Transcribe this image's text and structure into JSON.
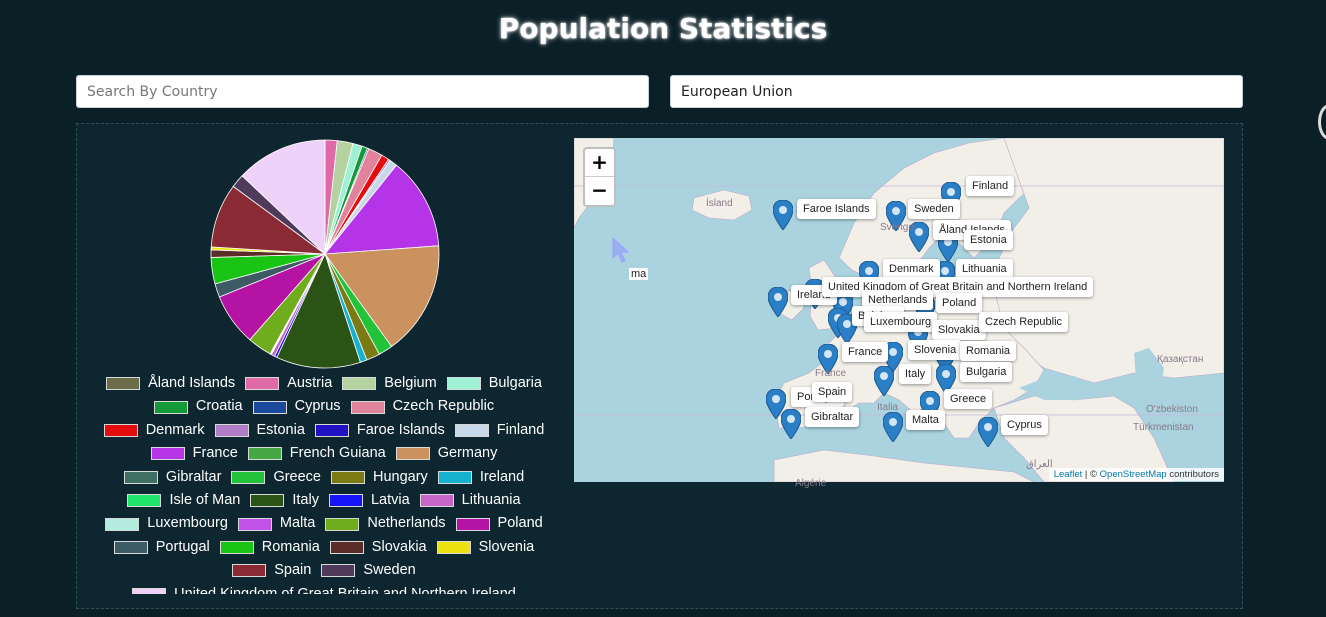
{
  "title": "Population Statistics",
  "search": {
    "placeholder": "Search By Country"
  },
  "region": {
    "value": "European Union"
  },
  "legend": [
    {
      "label": "Åland Islands",
      "color": "#6b6d4a"
    },
    {
      "label": "Austria",
      "color": "#e06aa8"
    },
    {
      "label": "Belgium",
      "color": "#b4d3a1"
    },
    {
      "label": "Bulgaria",
      "color": "#9ff1d5"
    },
    {
      "label": "Croatia",
      "color": "#159a3a"
    },
    {
      "label": "Cyprus",
      "color": "#1b4a9c"
    },
    {
      "label": "Czech Republic",
      "color": "#e2839e"
    },
    {
      "label": "Denmark",
      "color": "#e40c0c"
    },
    {
      "label": "Estonia",
      "color": "#b07cc6"
    },
    {
      "label": "Faroe Islands",
      "color": "#2111c0"
    },
    {
      "label": "Finland",
      "color": "#c7d9e8"
    },
    {
      "label": "France",
      "color": "#b634e8"
    },
    {
      "label": "French Guiana",
      "color": "#46a843"
    },
    {
      "label": "Germany",
      "color": "#cb915e"
    },
    {
      "label": "Gibraltar",
      "color": "#3f6e62"
    },
    {
      "label": "Greece",
      "color": "#23c339"
    },
    {
      "label": "Hungary",
      "color": "#7c7a12"
    },
    {
      "label": "Ireland",
      "color": "#16b1cf"
    },
    {
      "label": "Isle of Man",
      "color": "#1ee56a"
    },
    {
      "label": "Italy",
      "color": "#2b5315"
    },
    {
      "label": "Latvia",
      "color": "#1713f7"
    },
    {
      "label": "Lithuania",
      "color": "#c865c9"
    },
    {
      "label": "Luxembourg",
      "color": "#b4ece0"
    },
    {
      "label": "Malta",
      "color": "#c153e8"
    },
    {
      "label": "Netherlands",
      "color": "#6fad1d"
    },
    {
      "label": "Poland",
      "color": "#b413a4"
    },
    {
      "label": "Portugal",
      "color": "#3d5b65"
    },
    {
      "label": "Romania",
      "color": "#1ac414"
    },
    {
      "label": "Slovakia",
      "color": "#5c2d28"
    },
    {
      "label": "Slovenia",
      "color": "#ece20f"
    },
    {
      "label": "Spain",
      "color": "#8a2a34"
    },
    {
      "label": "Sweden",
      "color": "#4f3a5c"
    },
    {
      "label": "United Kingdom of Great Britain and Northern Ireland",
      "color": "#efd2fa"
    }
  ],
  "chart_data": {
    "type": "pie",
    "categories": [
      "Austria",
      "Belgium",
      "Bulgaria",
      "Croatia",
      "Cyprus",
      "Czech Republic",
      "Denmark",
      "Estonia",
      "Finland",
      "France",
      "Germany",
      "Greece",
      "Hungary",
      "Ireland",
      "Italy",
      "Latvia",
      "Lithuania",
      "Luxembourg",
      "Malta",
      "Netherlands",
      "Poland",
      "Portugal",
      "Romania",
      "Slovakia",
      "Slovenia",
      "Spain",
      "Sweden",
      "United Kingdom of Great Britain and Northern Ireland"
    ],
    "values": [
      1.7,
      2.2,
      1.3,
      0.8,
      0.2,
      2.0,
      1.1,
      0.25,
      1.1,
      12.9,
      16.0,
      2.0,
      1.9,
      0.95,
      11.8,
      0.35,
      0.5,
      0.12,
      0.09,
      3.4,
      7.3,
      1.9,
      3.7,
      1.05,
      0.4,
      9.0,
      1.9,
      12.8
    ]
  },
  "map": {
    "labels": [
      "Faroe Islands",
      "Sweden",
      "Finland",
      "Åland Islands",
      "Estonia",
      "Denmark",
      "Lithuania",
      "Ireland",
      "United Kingdom of Great Britain and Northern Ireland",
      "Netherlands",
      "Poland",
      "Belgium",
      "Luxembourg",
      "Slovakia",
      "Czech Republic",
      "France",
      "Slovenia",
      "Romania",
      "Italy",
      "Bulgaria",
      "Portugal",
      "Spain",
      "Greece",
      "Gibraltar",
      "Malta",
      "Cyprus"
    ],
    "basemap_text": [
      "Ísland",
      "Қазақстан",
      "O'zbekiston",
      "Türkmenistan",
      "Italia",
      "France",
      "Sverige",
      "العراق",
      "Algérie"
    ],
    "cursor_text": "ma",
    "zoom_in": "+",
    "zoom_out": "−",
    "attribution_leaflet": "Leaflet",
    "attribution_sep": " | © ",
    "attribution_osm": "OpenStreetMap",
    "attribution_tail": " contributors"
  }
}
